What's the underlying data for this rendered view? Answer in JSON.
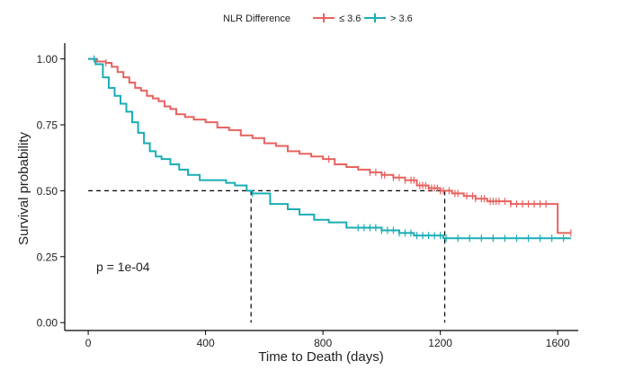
{
  "chart_data": {
    "type": "line",
    "subtype": "kaplan-meier survival curve",
    "legend": {
      "title": "NLR Difference",
      "position": "top",
      "entries": [
        "≤ 3.6",
        "> 3.6"
      ]
    },
    "xlabel": "Time to Death (days)",
    "ylabel": "Survival probability",
    "xlim": [
      -80,
      1670
    ],
    "ylim": [
      -0.03,
      1.06
    ],
    "x_ticks": [
      0,
      400,
      800,
      1200,
      1600
    ],
    "x_tick_labels": [
      "0",
      "400",
      "800",
      "1200",
      "1600"
    ],
    "y_ticks": [
      0.0,
      0.25,
      0.5,
      0.75,
      1.0
    ],
    "y_tick_labels": [
      "0.00",
      "0.25",
      "0.50",
      "0.75",
      "1.00"
    ],
    "grid": false,
    "annotation": "p = 1e-04",
    "reference_lines": {
      "y": 0.5,
      "median_survival": [
        555,
        1215
      ]
    },
    "series": [
      {
        "name": "≤ 3.6",
        "color": "#E7625F",
        "x": [
          0,
          30,
          60,
          80,
          100,
          120,
          140,
          160,
          180,
          200,
          220,
          240,
          260,
          280,
          300,
          330,
          360,
          400,
          440,
          480,
          520,
          560,
          600,
          640,
          680,
          720,
          760,
          800,
          840,
          880,
          920,
          960,
          1000,
          1040,
          1080,
          1120,
          1160,
          1200,
          1240,
          1280,
          1320,
          1360,
          1400,
          1440,
          1500,
          1590,
          1600,
          1645
        ],
        "y": [
          1.0,
          0.99,
          0.985,
          0.97,
          0.95,
          0.93,
          0.91,
          0.89,
          0.88,
          0.86,
          0.85,
          0.84,
          0.82,
          0.81,
          0.79,
          0.78,
          0.77,
          0.76,
          0.74,
          0.73,
          0.71,
          0.7,
          0.68,
          0.67,
          0.65,
          0.64,
          0.63,
          0.62,
          0.6,
          0.59,
          0.58,
          0.57,
          0.56,
          0.55,
          0.54,
          0.52,
          0.51,
          0.5,
          0.49,
          0.48,
          0.47,
          0.46,
          0.46,
          0.45,
          0.45,
          0.45,
          0.34,
          0.34
        ],
        "censored_x": [
          60,
          820,
          960,
          980,
          1000,
          1010,
          1040,
          1060,
          1080,
          1100,
          1110,
          1130,
          1140,
          1150,
          1160,
          1170,
          1180,
          1190,
          1200,
          1210,
          1230,
          1250,
          1260,
          1290,
          1310,
          1320,
          1340,
          1350,
          1370,
          1380,
          1390,
          1400,
          1420,
          1440,
          1460,
          1480,
          1500,
          1520,
          1540,
          1560,
          1645
        ]
      },
      {
        "name": "> 3.6",
        "color": "#1AADB5",
        "x": [
          0,
          25,
          50,
          70,
          90,
          110,
          130,
          150,
          170,
          190,
          210,
          230,
          250,
          280,
          310,
          340,
          380,
          420,
          470,
          500,
          540,
          560,
          620,
          680,
          720,
          770,
          820,
          880,
          960,
          1000,
          1060,
          1110,
          1160,
          1200,
          1210,
          1250,
          1300,
          1400,
          1500,
          1645
        ],
        "y": [
          1.0,
          0.98,
          0.93,
          0.89,
          0.86,
          0.83,
          0.8,
          0.76,
          0.72,
          0.68,
          0.65,
          0.63,
          0.62,
          0.6,
          0.58,
          0.56,
          0.54,
          0.54,
          0.53,
          0.52,
          0.5,
          0.49,
          0.45,
          0.43,
          0.41,
          0.39,
          0.38,
          0.36,
          0.36,
          0.35,
          0.34,
          0.33,
          0.33,
          0.33,
          0.32,
          0.32,
          0.32,
          0.32,
          0.32,
          0.32
        ],
        "censored_x": [
          20,
          560,
          920,
          940,
          960,
          980,
          1000,
          1020,
          1040,
          1060,
          1080,
          1100,
          1120,
          1140,
          1160,
          1180,
          1200,
          1220,
          1260,
          1300,
          1340,
          1380,
          1420,
          1460,
          1500,
          1540,
          1580,
          1620
        ]
      }
    ]
  }
}
